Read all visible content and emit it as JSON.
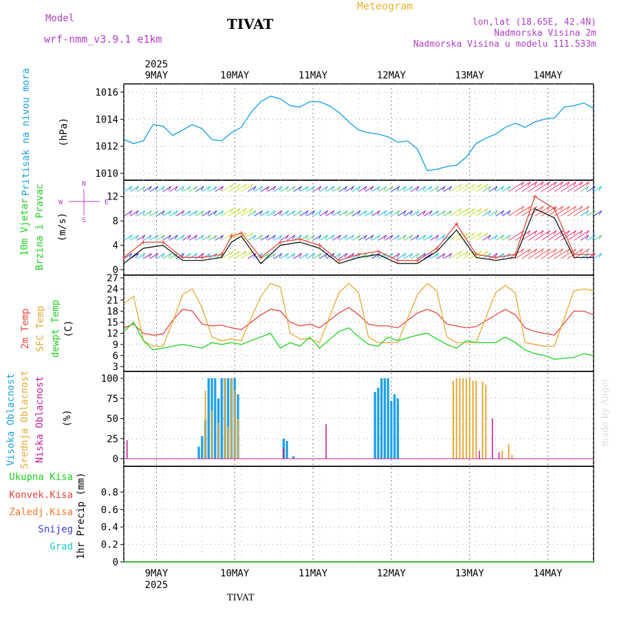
{
  "header": {
    "model_label": "Model",
    "model_name": "wrf-nmm_v3.9.1 e1km",
    "title": "TIVAT",
    "meteogram": "Meteogram",
    "lonlat": "lon,lat (18.65E, 42.4N)",
    "elev": "Nadmorska Visina 2m",
    "elev_model": "Nadmorska Visina u modelu 111.533m",
    "footer_city": "TIVAT",
    "watermark": "made by Angel"
  },
  "colors": {
    "pressure": "#1ea0e6",
    "t2m": "#e6463c",
    "sfc": "#e6a832",
    "dew": "#1ed21e",
    "high": "#1ea0e6",
    "mid": "#e6a832",
    "low": "#c81e96",
    "total": "#1ed21e",
    "conv": "#e6463c",
    "frz": "#f07828",
    "snow": "#3c3ce6",
    "hail": "#1ec8c8",
    "wind_speed": "#000000",
    "gust": "#e6463c",
    "label_purple": "#b040c8",
    "label_orange": "#e6b432"
  },
  "chart_data": {
    "type": "line",
    "x_axis": {
      "type": "time",
      "start": "2025-05-08T14:00",
      "end": "2025-05-14T14:00",
      "top_year": "2025",
      "bottom_year": "2025",
      "ticks": [
        {
          "label": "9MAY",
          "time": "2025-05-09T00:00"
        },
        {
          "label": "10MAY",
          "time": "2025-05-10T00:00"
        },
        {
          "label": "11MAY",
          "time": "2025-05-11T00:00"
        },
        {
          "label": "12MAY",
          "time": "2025-05-12T00:00"
        },
        {
          "label": "13MAY",
          "time": "2025-05-13T00:00"
        },
        {
          "label": "14MAY",
          "time": "2025-05-14T00:00"
        }
      ]
    },
    "panels": [
      {
        "id": "pressure",
        "ylabel": "Pritisak na nivou mora",
        "unit": "(hPa)",
        "ylim": [
          1010,
          1016
        ],
        "yticks": [
          "1010",
          "1012",
          "1014",
          "1016"
        ],
        "series": [
          {
            "key": "pressure",
            "hours": [
              0,
              3,
              6,
              9,
              12,
              15,
              18,
              21,
              24,
              27,
              30,
              33,
              36,
              39,
              42,
              45,
              48,
              51,
              54,
              57,
              60,
              63,
              66,
              69,
              72,
              75,
              78,
              81,
              84,
              87,
              90,
              93,
              96,
              99,
              102,
              105,
              108,
              111,
              114,
              117,
              120,
              123,
              126,
              129,
              132,
              135,
              138,
              141,
              144
            ],
            "values": [
              1012.5,
              1012.2,
              1012.4,
              1013.6,
              1013.5,
              1012.8,
              1013.2,
              1013.6,
              1013.3,
              1012.5,
              1012.4,
              1013.0,
              1013.4,
              1014.5,
              1015.3,
              1015.7,
              1015.5,
              1015.0,
              1014.9,
              1015.3,
              1015.3,
              1015.0,
              1014.5,
              1013.8,
              1013.2,
              1013.0,
              1012.9,
              1012.7,
              1012.3,
              1012.4,
              1011.8,
              1010.2,
              1010.3,
              1010.5,
              1010.6,
              1011.2,
              1012.2,
              1012.6,
              1012.9,
              1013.4,
              1013.7,
              1013.4,
              1013.8,
              1014.0,
              1014.1,
              1014.9,
              1015.0,
              1015.2,
              1014.8
            ]
          }
        ]
      },
      {
        "id": "wind",
        "ylabel": "10m Vjetar",
        "ylabel2": "Brzina i Pravac",
        "unit": "(m/s)",
        "ylim": [
          0,
          14
        ],
        "yticks": [
          "0",
          "4",
          "8",
          "12"
        ],
        "compass": [
          "N",
          "W",
          "E",
          "S"
        ],
        "series": [
          {
            "key": "wind_speed",
            "hours": [
              0,
              6,
              12,
              18,
              24,
              30,
              33,
              36,
              42,
              48,
              54,
              60,
              66,
              72,
              78,
              84,
              90,
              96,
              102,
              108,
              114,
              120,
              126,
              132,
              138,
              144
            ],
            "values": [
              1.0,
              3.5,
              4.0,
              1.5,
              1.5,
              2.0,
              4.5,
              5.5,
              1.0,
              4.0,
              4.5,
              3.5,
              1.0,
              2.0,
              2.5,
              1.0,
              1.0,
              3.0,
              6.5,
              2.0,
              1.5,
              2.0,
              10.0,
              8.5,
              2.0,
              2.0
            ]
          },
          {
            "key": "gust",
            "hours": [
              0,
              6,
              12,
              18,
              24,
              30,
              33,
              36,
              42,
              48,
              54,
              60,
              66,
              72,
              78,
              84,
              90,
              96,
              102,
              108,
              114,
              120,
              126,
              132,
              138,
              144
            ],
            "values": [
              2.0,
              4.5,
              4.5,
              2.0,
              2.0,
              2.5,
              5.5,
              6.0,
              2.0,
              4.5,
              5.0,
              4.0,
              1.5,
              2.5,
              3.0,
              1.5,
              1.5,
              3.5,
              7.5,
              2.5,
              2.0,
              2.5,
              12.0,
              10.0,
              2.5,
              2.5
            ]
          }
        ]
      },
      {
        "id": "temp",
        "ylabel": "2m Temp",
        "ylabel2": "SFC Temp",
        "ylabel3": "dewpt Temp",
        "unit": "(C)",
        "ylim": [
          3,
          27
        ],
        "yticks": [
          "3",
          "6",
          "9",
          "12",
          "15",
          "18",
          "21",
          "24",
          "27"
        ],
        "series": [
          {
            "key": "t2m",
            "hours": [
              0,
              3,
              6,
              9,
              12,
              15,
              18,
              21,
              24,
              27,
              30,
              33,
              36,
              42,
              45,
              48,
              51,
              54,
              57,
              60,
              66,
              69,
              72,
              75,
              78,
              81,
              84,
              90,
              93,
              96,
              99,
              102,
              105,
              108,
              114,
              117,
              120,
              123,
              126,
              129,
              132,
              138,
              141,
              144
            ],
            "values": [
              13.5,
              14.5,
              12.0,
              11.5,
              11.8,
              15.5,
              18.5,
              18.0,
              14.5,
              14.0,
              14.2,
              13.5,
              13.0,
              17.0,
              18.5,
              18.0,
              15.0,
              14.0,
              14.5,
              13.5,
              17.5,
              19.0,
              17.0,
              14.5,
              14.0,
              14.0,
              13.5,
              17.5,
              18.5,
              17.5,
              14.5,
              14.0,
              13.5,
              13.8,
              17.0,
              18.5,
              17.0,
              13.5,
              12.5,
              12.0,
              11.5,
              18.0,
              18.0,
              17.0
            ]
          },
          {
            "key": "sfc",
            "hours": [
              0,
              3,
              6,
              9,
              12,
              15,
              18,
              21,
              24,
              27,
              30,
              33,
              36,
              42,
              45,
              48,
              51,
              54,
              57,
              60,
              66,
              69,
              72,
              75,
              78,
              81,
              84,
              90,
              93,
              96,
              99,
              102,
              105,
              108,
              114,
              117,
              120,
              123,
              126,
              129,
              132,
              138,
              141,
              144
            ],
            "values": [
              20.0,
              22.0,
              10.0,
              8.5,
              8.5,
              15.0,
              22.5,
              24.0,
              19.0,
              11.0,
              10.0,
              10.5,
              10.0,
              22.0,
              25.5,
              24.5,
              12.0,
              10.5,
              10.5,
              9.5,
              23.0,
              25.5,
              23.0,
              11.0,
              9.5,
              9.5,
              9.5,
              22.5,
              25.5,
              23.5,
              11.0,
              9.5,
              9.5,
              9.5,
              23.0,
              25.0,
              23.0,
              9.5,
              9.0,
              8.5,
              8.5,
              23.5,
              24.0,
              23.5
            ]
          },
          {
            "key": "dew",
            "hours": [
              0,
              3,
              6,
              9,
              12,
              15,
              18,
              21,
              24,
              27,
              30,
              33,
              36,
              42,
              45,
              48,
              51,
              54,
              57,
              60,
              66,
              69,
              72,
              75,
              78,
              81,
              84,
              90,
              93,
              96,
              99,
              102,
              105,
              108,
              114,
              117,
              120,
              123,
              126,
              129,
              132,
              138,
              141,
              144
            ],
            "values": [
              12.5,
              15.0,
              10.0,
              7.5,
              8.0,
              8.5,
              9.0,
              8.5,
              8.0,
              9.5,
              9.0,
              9.5,
              9.0,
              11.0,
              12.0,
              8.0,
              9.5,
              8.5,
              11.0,
              8.0,
              12.5,
              13.5,
              11.0,
              9.0,
              8.5,
              11.0,
              10.0,
              11.5,
              12.0,
              10.5,
              9.0,
              8.0,
              10.0,
              9.5,
              9.5,
              11.0,
              9.5,
              7.5,
              6.5,
              6.0,
              5.0,
              5.5,
              6.5,
              6.0
            ]
          }
        ]
      },
      {
        "id": "cloud",
        "ylabel": "Visoka Oblacnost",
        "ylabel2": "Srednja Oblacnost",
        "ylabel3": "Niska Oblacnost",
        "unit": "(%)",
        "ylim": [
          0,
          100
        ],
        "yticks": [
          "0",
          "25",
          "50",
          "75",
          "100"
        ],
        "bars": [
          {
            "key": "high",
            "hours": [
              23,
              24,
              25,
              26,
              27,
              28,
              29,
              30,
              31,
              32,
              33,
              34,
              35,
              49,
              50,
              52,
              77,
              78,
              79,
              80,
              81,
              82,
              83,
              84
            ],
            "values": [
              15,
              28,
              48,
              100,
              100,
              100,
              75,
              100,
              100,
              100,
              100,
              100,
              80,
              25,
              22,
              3,
              83,
              88,
              100,
              100,
              100,
              72,
              80,
              75
            ]
          },
          {
            "key": "mid",
            "hours": [
              25,
              27,
              29,
              31,
              32,
              33,
              34,
              35,
              101,
              102,
              103,
              104,
              105,
              106,
              107,
              108,
              110,
              111,
              116,
              118,
              119
            ],
            "values": [
              85,
              60,
              45,
              100,
              40,
              100,
              85,
              50,
              97,
              100,
              100,
              100,
              100,
              100,
              97,
              97,
              96,
              92,
              10,
              18,
              5
            ]
          },
          {
            "key": "low",
            "hours": [
              1,
              49,
              62,
              109,
              113,
              115
            ],
            "values": [
              23,
              13,
              43,
              10,
              50,
              8
            ]
          }
        ]
      },
      {
        "id": "precip",
        "ylabel": "1hr Precip",
        "unit": "(mm)",
        "ylim": [
          0,
          1
        ],
        "yticks": [
          "0",
          "0.2",
          "0.4",
          "0.6",
          "0.8"
        ],
        "legend": [
          "Ukupna Kisa",
          "Konvek.Kisa",
          "Zaledj.Kisa",
          "Snijeg",
          "Grad"
        ],
        "series": [
          {
            "key": "total",
            "hours": [
              0,
              144
            ],
            "values": [
              0,
              0
            ]
          }
        ]
      }
    ]
  }
}
